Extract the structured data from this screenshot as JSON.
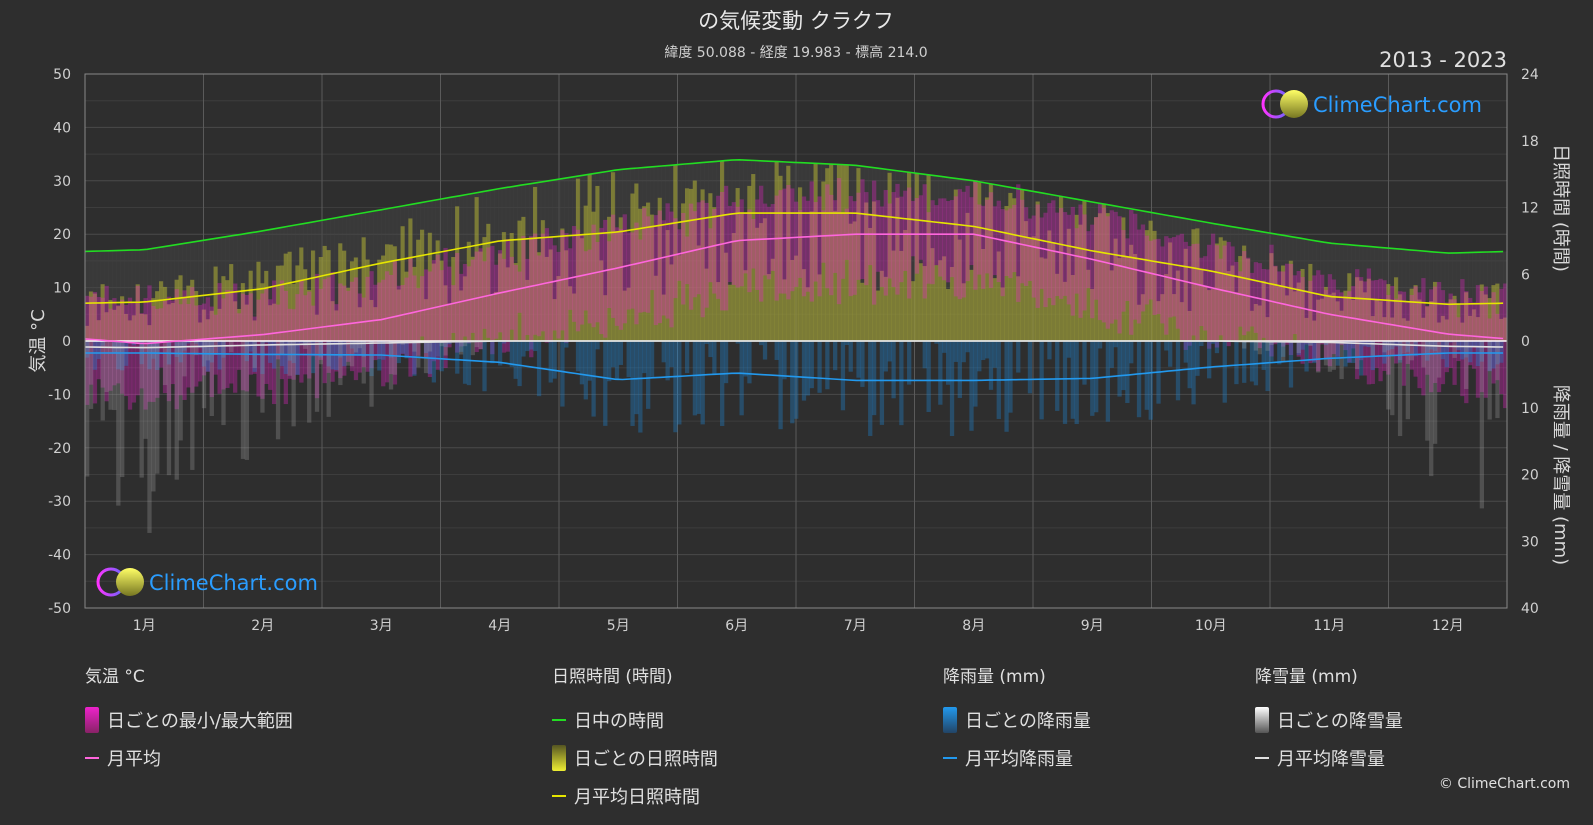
{
  "chart_data": {
    "type": "line",
    "title": "の気候変動 クラクフ",
    "subtitle": "緯度 50.088 - 経度 19.983 - 標高 214.0",
    "period": "2013 - 2023",
    "brand": "ClimeChart.com",
    "copyright": "© ClimeChart.com",
    "ylabel_left": "気温 °C",
    "ylabel_right_top": "日照時間 (時間)",
    "ylabel_right_bottom": "降雨量 / 降雪量 (mm)",
    "ylim_left": [
      -50,
      50
    ],
    "left_ticks": [
      "50",
      "40",
      "30",
      "20",
      "10",
      "0",
      "-10",
      "-20",
      "-30",
      "-40",
      "-50"
    ],
    "right_top_ticks": [
      "24",
      "18",
      "12",
      "6",
      "0"
    ],
    "right_bottom_ticks": [
      "10",
      "20",
      "30",
      "40"
    ],
    "months": [
      "1月",
      "2月",
      "3月",
      "4月",
      "5月",
      "6月",
      "7月",
      "8月",
      "9月",
      "10月",
      "11月",
      "12月"
    ],
    "series": [
      {
        "name": "日中の時間",
        "unit": "hours",
        "color": "#22dd22",
        "values": [
          8.2,
          9.9,
          11.8,
          13.7,
          15.4,
          16.3,
          15.8,
          14.4,
          12.5,
          10.6,
          8.8,
          7.9
        ]
      },
      {
        "name": "月平均日照時間",
        "unit": "hours",
        "color": "#e6e600",
        "values": [
          3.5,
          4.7,
          7.0,
          9.0,
          9.8,
          11.5,
          11.5,
          10.3,
          8.1,
          6.3,
          4.0,
          3.3
        ]
      },
      {
        "name": "月平均",
        "unit": "°C",
        "color": "#ff66dd",
        "values": [
          -0.5,
          1.2,
          4.0,
          9.0,
          13.7,
          18.8,
          20.0,
          20.0,
          15.3,
          10.0,
          5.0,
          1.3
        ]
      },
      {
        "name": "月平均降雨量",
        "unit": "mm",
        "color": "#2299ee",
        "values": [
          1.8,
          2.0,
          2.1,
          3.2,
          5.8,
          4.8,
          5.9,
          5.9,
          5.6,
          3.9,
          2.6,
          1.8
        ]
      },
      {
        "name": "月平均降雪量",
        "unit": "mm",
        "color": "#e0e0e0",
        "values": [
          1.0,
          0.6,
          0.3,
          0.0,
          0.0,
          0.0,
          0.0,
          0.0,
          0.0,
          0.0,
          0.2,
          0.8
        ]
      }
    ],
    "daily_range_color": "#ee22cc",
    "daily_sunshine_color": "#cccc33",
    "daily_rain_color": "#1e88d8",
    "daily_snow_color": "#aaaaaa"
  },
  "legend": {
    "temp": {
      "title": "気温 °C",
      "range": "日ごとの最小/最大範囲",
      "mean": "月平均"
    },
    "sun": {
      "title": "日照時間 (時間)",
      "daylight": "日中の時間",
      "daily": "日ごとの日照時間",
      "mean": "月平均日照時間"
    },
    "rain": {
      "title": "降雨量 (mm)",
      "daily": "日ごとの降雨量",
      "mean": "月平均降雨量"
    },
    "snow": {
      "title": "降雪量 (mm)",
      "daily": "日ごとの降雪量",
      "mean": "月平均降雪量"
    }
  }
}
